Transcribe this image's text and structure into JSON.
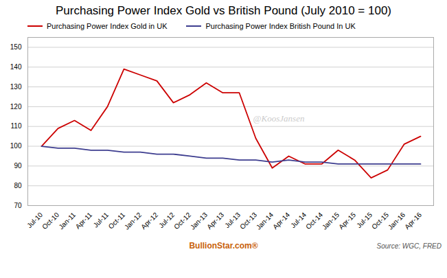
{
  "chart_data": {
    "type": "line",
    "title": "Purchasing Power Index Gold vs British Pound (July 2010 = 100)",
    "categories": [
      "Jul-10",
      "Oct-10",
      "Jan-11",
      "Apr-11",
      "Jul-11",
      "Oct-11",
      "Jan-12",
      "Apr-12",
      "Jul-12",
      "Oct-12",
      "Jan-13",
      "Apr-13",
      "Jul-13",
      "Oct-13",
      "Jan-14",
      "Apr-14",
      "Jul-14",
      "Oct-14",
      "Jan-15",
      "Apr-15",
      "Jul-15",
      "Oct-15",
      "Jan-16",
      "Apr-16"
    ],
    "series": [
      {
        "name": "Purchasing Power Index Gold in UK",
        "color": "#cc0000",
        "values": [
          100,
          109,
          113,
          108,
          120,
          139,
          136,
          133,
          122,
          126,
          132,
          127,
          127,
          104,
          89,
          95,
          91,
          91,
          98,
          93,
          84,
          88,
          101,
          105
        ]
      },
      {
        "name": "Purchasing Power Index British Pound In UK",
        "color": "#3d3d8f",
        "values": [
          100,
          99,
          99,
          98,
          98,
          97,
          97,
          96,
          96,
          95,
          94,
          94,
          93,
          93,
          92,
          93,
          92,
          92,
          91,
          91,
          91,
          91,
          91,
          91
        ]
      }
    ],
    "ylim": [
      70,
      155
    ],
    "yticks": [
      70,
      80,
      90,
      100,
      110,
      120,
      130,
      140,
      150
    ],
    "grid": true,
    "legend": "upper left",
    "annotations": [
      {
        "text": "@KoosJansen"
      },
      {
        "text": "BullionStar.com®",
        "color": "#c8600a"
      },
      {
        "text": "Source: WGC, FRED"
      }
    ]
  }
}
